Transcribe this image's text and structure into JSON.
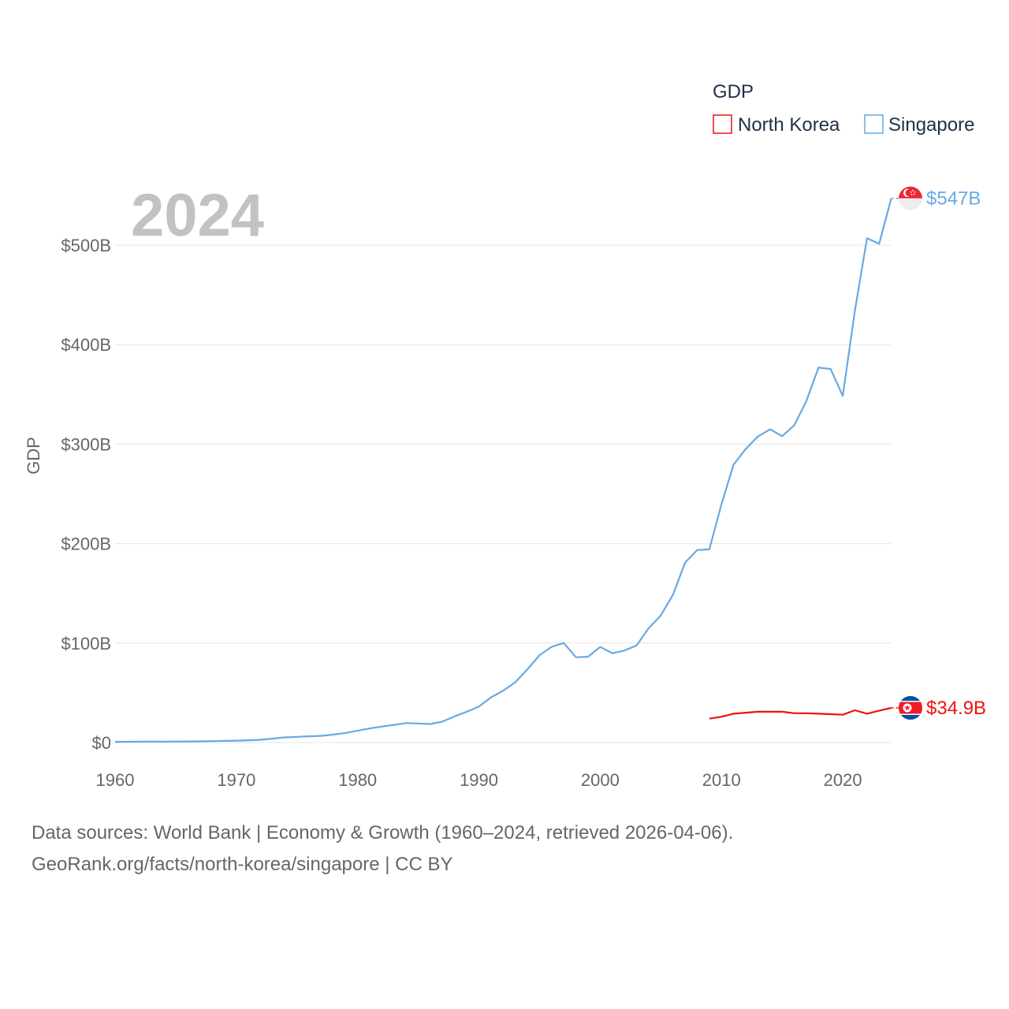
{
  "chart_data": {
    "type": "line",
    "title": "",
    "year_label": "2024",
    "xlabel": "",
    "ylabel": "GDP",
    "xlim": [
      1960,
      2024
    ],
    "ylim": [
      0,
      500
    ],
    "y_unit": "billion USD",
    "x_ticks": [
      1960,
      1970,
      1980,
      1990,
      2000,
      2010,
      2020
    ],
    "y_ticks": [
      {
        "value": 0,
        "label": "$0"
      },
      {
        "value": 100,
        "label": "$100B"
      },
      {
        "value": 200,
        "label": "$200B"
      },
      {
        "value": 300,
        "label": "$300B"
      },
      {
        "value": 400,
        "label": "$400B"
      },
      {
        "value": 500,
        "label": "$500B"
      }
    ],
    "legend": {
      "title": "GDP",
      "position": "top-right",
      "entries": [
        "North Korea",
        "Singapore"
      ]
    },
    "series": [
      {
        "name": "North Korea",
        "color": "#ee1111",
        "end_label": "$34.9B",
        "flag": "north-korea",
        "x": [
          2009,
          2010,
          2011,
          2012,
          2013,
          2014,
          2015,
          2016,
          2017,
          2018,
          2019,
          2020,
          2021,
          2022,
          2023,
          2024
        ],
        "values": [
          24,
          26,
          29,
          30,
          31,
          31,
          31,
          29.5,
          29.5,
          29,
          28.5,
          28,
          32.5,
          29,
          32,
          34.9
        ]
      },
      {
        "name": "Singapore",
        "color": "#67a9e4",
        "end_label": "$547B",
        "flag": "singapore",
        "x": [
          1960,
          1961,
          1962,
          1963,
          1964,
          1965,
          1966,
          1967,
          1968,
          1969,
          1970,
          1971,
          1972,
          1973,
          1974,
          1975,
          1976,
          1977,
          1978,
          1979,
          1980,
          1981,
          1982,
          1983,
          1984,
          1985,
          1986,
          1987,
          1988,
          1989,
          1990,
          1991,
          1992,
          1993,
          1994,
          1995,
          1996,
          1997,
          1998,
          1999,
          2000,
          2001,
          2002,
          2003,
          2004,
          2005,
          2006,
          2007,
          2008,
          2009,
          2010,
          2011,
          2012,
          2013,
          2014,
          2015,
          2016,
          2017,
          2018,
          2019,
          2020,
          2021,
          2022,
          2023,
          2024
        ],
        "values": [
          0.7,
          0.8,
          0.9,
          1.0,
          0.9,
          1.0,
          1.1,
          1.2,
          1.4,
          1.7,
          1.9,
          2.3,
          2.8,
          4.0,
          5.2,
          5.7,
          6.3,
          6.7,
          8.0,
          9.7,
          12.0,
          14.2,
          16.1,
          17.8,
          19.6,
          19.2,
          18.6,
          21.1,
          26.4,
          31.0,
          36.1,
          45.5,
          52.1,
          60.6,
          73.7,
          87.9,
          96.3,
          100.1,
          85.7,
          86.3,
          96.1,
          89.8,
          92.5,
          97.7,
          115.0,
          127.8,
          148.6,
          180.9,
          193.6,
          194.2,
          239.8,
          279.4,
          295.1,
          307.6,
          314.9,
          308.0,
          319.0,
          343.2,
          376.9,
          375.5,
          348.4,
          434.1,
          507.0,
          501.4,
          547.0
        ]
      }
    ]
  },
  "footer": {
    "line1": "Data sources: World Bank | Economy & Growth (1960–2024, retrieved 2026-04-06).",
    "line2": "GeoRank.org/facts/north-korea/singapore | CC BY"
  }
}
